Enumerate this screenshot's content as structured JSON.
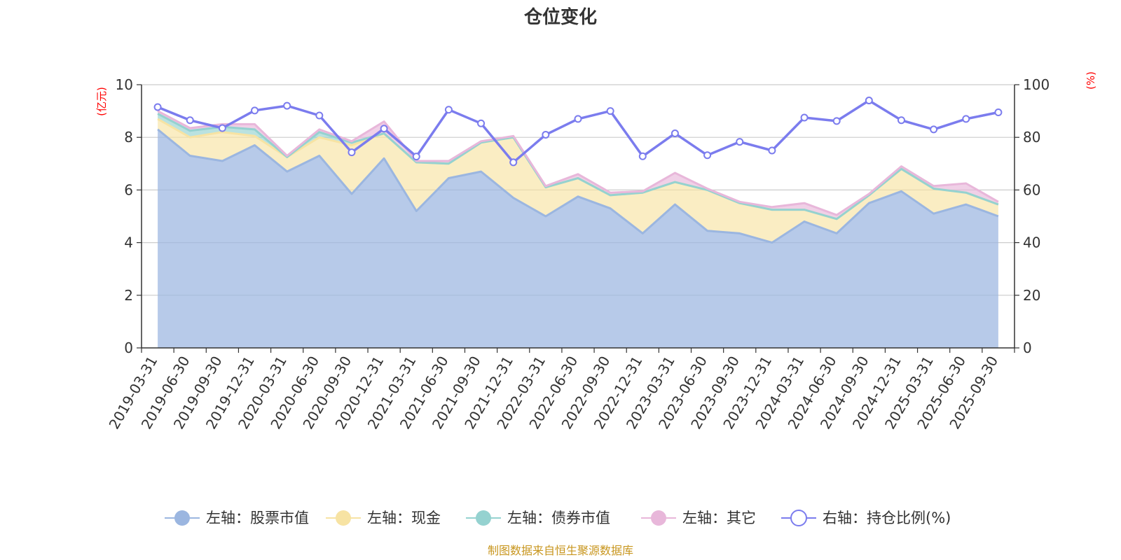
{
  "chart_data": {
    "type": "area",
    "title": "仓位变化",
    "left_axis_unit": "(亿元)",
    "right_axis_unit": "(%)",
    "left_ylim": [
      0,
      10
    ],
    "right_ylim": [
      0,
      100
    ],
    "left_ticks": [
      "0",
      "2",
      "4",
      "6",
      "8",
      "10"
    ],
    "right_ticks": [
      "0",
      "20",
      "40",
      "60",
      "80",
      "100"
    ],
    "categories": [
      "2019-03-31",
      "2019-06-30",
      "2019-09-30",
      "2019-12-31",
      "2020-03-31",
      "2020-06-30",
      "2020-09-30",
      "2020-12-31",
      "2021-03-31",
      "2021-06-30",
      "2021-09-30",
      "2021-12-31",
      "2022-03-31",
      "2022-06-30",
      "2022-09-30",
      "2022-12-31",
      "2023-03-31",
      "2023-06-30",
      "2023-09-30",
      "2023-12-31",
      "2024-03-31",
      "2024-06-30",
      "2024-09-30",
      "2024-12-31",
      "2025-03-31",
      "2025-06-30",
      "2025-09-30"
    ],
    "series": [
      {
        "name": "左轴：股票市值",
        "axis": "left",
        "color": "#9bb6e0",
        "values": [
          8.3,
          7.3,
          7.1,
          7.7,
          6.7,
          7.3,
          5.85,
          7.2,
          5.2,
          6.45,
          6.7,
          5.7,
          5.0,
          5.75,
          5.3,
          4.35,
          5.45,
          4.45,
          4.35,
          4.0,
          4.8,
          4.35,
          5.5,
          5.95,
          5.1,
          5.45,
          5.0
        ]
      },
      {
        "name": "左轴：现金",
        "axis": "left",
        "color": "#f7e3a3",
        "values": [
          0.4,
          0.7,
          1.1,
          0.35,
          0.55,
          0.7,
          1.85,
          0.95,
          1.85,
          0.55,
          1.1,
          2.3,
          1.1,
          0.7,
          0.5,
          1.55,
          0.85,
          1.55,
          1.15,
          1.25,
          0.45,
          0.55,
          0.3,
          0.85,
          0.95,
          0.45,
          0.45
        ]
      },
      {
        "name": "左轴：债券市值",
        "axis": "left",
        "color": "#95d2d0",
        "values": [
          0.2,
          0.25,
          0.2,
          0.25,
          0,
          0.2,
          0.1,
          0,
          0,
          0,
          0,
          0,
          0,
          0,
          0,
          0,
          0,
          0,
          0,
          0,
          0,
          0,
          0,
          0,
          0,
          0,
          0
        ]
      },
      {
        "name": "左轴：其它",
        "axis": "left",
        "color": "#e8b7da",
        "values": [
          0.1,
          0.1,
          0.1,
          0.2,
          0.05,
          0.1,
          0.05,
          0.45,
          0.05,
          0.1,
          0.05,
          0.05,
          0.05,
          0.15,
          0.1,
          0.05,
          0.35,
          0.05,
          0.05,
          0.1,
          0.25,
          0.15,
          0.05,
          0.1,
          0.1,
          0.35,
          0.1
        ]
      },
      {
        "name": "右轴：持仓比例(%)",
        "axis": "right",
        "color": "#7b7cee",
        "values": [
          91.5,
          86.5,
          83.5,
          90.2,
          92.0,
          88.3,
          74.3,
          83.3,
          72.7,
          90.5,
          85.3,
          70.5,
          81.0,
          87.0,
          90.0,
          72.8,
          81.5,
          73.2,
          78.3,
          75.0,
          87.5,
          86.2,
          94.0,
          86.5,
          83.0,
          87.0,
          89.5
        ]
      }
    ]
  },
  "source_text": "制图数据来自恒生聚源数据库"
}
